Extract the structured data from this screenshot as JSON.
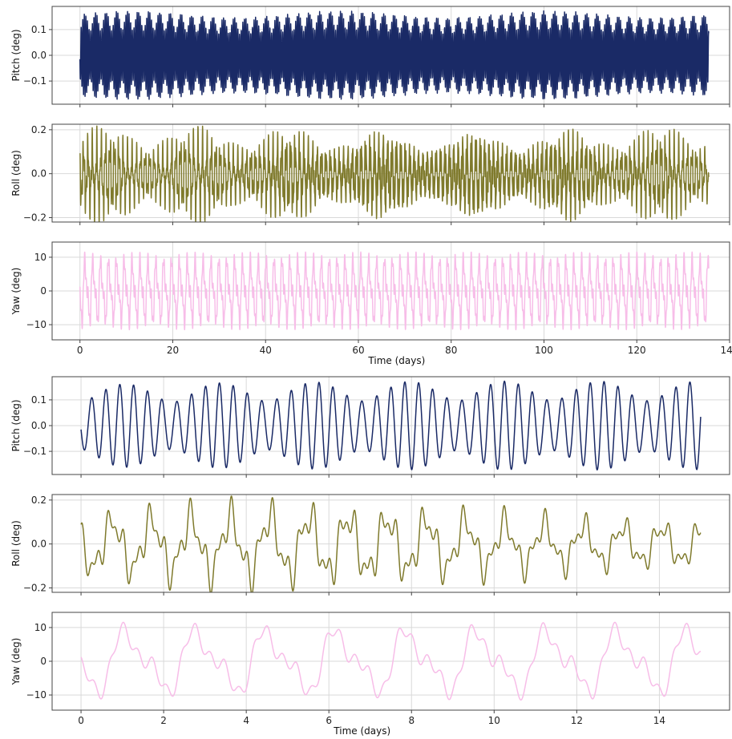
{
  "colors": {
    "pitch": "#1a2a66",
    "roll": "#7f7a2c",
    "yaw": "#f7bde8"
  },
  "chart_data": [
    {
      "type": "line",
      "panel": "long-pitch",
      "ylabel": "Pitch (deg)",
      "xlabel": "",
      "xlim": [
        -6,
        140
      ],
      "ylim": [
        -0.19,
        0.19
      ],
      "xticks": [
        0,
        20,
        40,
        60,
        80,
        100,
        120,
        140
      ],
      "show_xtick_labels": false,
      "yticks": [
        {
          "v": 0.1,
          "label": "0.1"
        },
        {
          "v": 0.0,
          "label": "0.0"
        },
        {
          "v": -0.1,
          "label": "−0.1"
        }
      ],
      "grid": true,
      "series": [
        {
          "color_key": "pitch",
          "signal": {
            "t_start": 0,
            "t_end": 135.5,
            "samples": 4200,
            "offset": 0,
            "components": [
              {
                "amp": 0.125,
                "period": 0.345,
                "phase": 3.4
              },
              {
                "amp": 0.035,
                "period": 0.3,
                "phase": 0.5
              }
            ],
            "envelope": {
              "depth": 0.08,
              "period": 45
            }
          }
        }
      ]
    },
    {
      "type": "line",
      "panel": "long-roll",
      "ylabel": "Roll (deg)",
      "xlabel": "",
      "xlim": [
        -6,
        140
      ],
      "ylim": [
        -0.22,
        0.225
      ],
      "xticks": [
        0,
        20,
        40,
        60,
        80,
        100,
        120,
        140
      ],
      "show_xtick_labels": false,
      "yticks": [
        {
          "v": 0.2,
          "label": "0.2"
        },
        {
          "v": 0.0,
          "label": "0.0"
        },
        {
          "v": -0.2,
          "label": "−0.2"
        }
      ],
      "grid": true,
      "series": [
        {
          "color_key": "roll",
          "signal": {
            "t_start": 0,
            "t_end": 135.5,
            "samples": 4200,
            "offset": -0.005,
            "components": [
              {
                "amp": 0.1,
                "period": 0.95,
                "phase": 2.8
              },
              {
                "amp": 0.05,
                "period": 0.33,
                "phase": 1.2
              },
              {
                "amp": 0.035,
                "period": 0.2,
                "phase": 0.4
              }
            ],
            "envelope": {
              "depth": 0.25,
              "period": 20
            }
          }
        }
      ]
    },
    {
      "type": "line",
      "panel": "long-yaw",
      "ylabel": "Yaw (deg)",
      "xlabel": "Time (days)",
      "xlim": [
        -6,
        140
      ],
      "ylim": [
        -14.5,
        14.5
      ],
      "xticks": [
        0,
        20,
        40,
        60,
        80,
        100,
        120,
        140
      ],
      "show_xtick_labels": true,
      "yticks": [
        {
          "v": 10,
          "label": "10"
        },
        {
          "v": 0,
          "label": "0"
        },
        {
          "v": -10,
          "label": "−10"
        }
      ],
      "grid": true,
      "series": [
        {
          "color_key": "yaw",
          "signal": {
            "t_start": 0,
            "t_end": 135.5,
            "samples": 4200,
            "offset": 0,
            "components": [
              {
                "amp": 7.5,
                "period": 1.7,
                "phase": 3.6
              },
              {
                "amp": 3.5,
                "period": 0.85,
                "phase": 0.9
              },
              {
                "amp": 2.0,
                "period": 0.35,
                "phase": 2.0
              }
            ],
            "envelope": {
              "depth": 0.0,
              "period": 30
            }
          }
        }
      ]
    },
    {
      "type": "line",
      "panel": "short-pitch",
      "ylabel": "Pitch (deg)",
      "xlabel": "",
      "xlim": [
        -0.7,
        15.7
      ],
      "ylim": [
        -0.19,
        0.19
      ],
      "xticks": [
        0,
        2,
        4,
        6,
        8,
        10,
        12,
        14
      ],
      "show_xtick_labels": false,
      "yticks": [
        {
          "v": 0.1,
          "label": "0.1"
        },
        {
          "v": 0.0,
          "label": "0.0"
        },
        {
          "v": -0.1,
          "label": "−0.1"
        }
      ],
      "grid": true,
      "series": [
        {
          "color_key": "pitch",
          "signal": {
            "t_start": 0,
            "t_end": 15,
            "samples": 1800,
            "offset": 0,
            "components": [
              {
                "amp": 0.125,
                "period": 0.345,
                "phase": 3.4
              },
              {
                "amp": 0.035,
                "period": 0.3,
                "phase": 0.5
              }
            ],
            "envelope": {
              "depth": 0.08,
              "period": 45
            }
          }
        }
      ]
    },
    {
      "type": "line",
      "panel": "short-roll",
      "ylabel": "Roll (deg)",
      "xlabel": "",
      "xlim": [
        -0.7,
        15.7
      ],
      "ylim": [
        -0.22,
        0.225
      ],
      "xticks": [
        0,
        2,
        4,
        6,
        8,
        10,
        12,
        14
      ],
      "show_xtick_labels": false,
      "yticks": [
        {
          "v": 0.2,
          "label": "0.2"
        },
        {
          "v": 0.0,
          "label": "0.0"
        },
        {
          "v": -0.2,
          "label": "−0.2"
        }
      ],
      "grid": true,
      "series": [
        {
          "color_key": "roll",
          "signal": {
            "t_start": 0,
            "t_end": 15,
            "samples": 1800,
            "offset": -0.005,
            "components": [
              {
                "amp": 0.1,
                "period": 0.95,
                "phase": 2.8
              },
              {
                "amp": 0.05,
                "period": 0.33,
                "phase": 1.2
              },
              {
                "amp": 0.035,
                "period": 0.2,
                "phase": 0.4
              }
            ],
            "envelope": {
              "depth": 0.25,
              "period": 20
            }
          }
        }
      ]
    },
    {
      "type": "line",
      "panel": "short-yaw",
      "ylabel": "Yaw (deg)",
      "xlabel": "Time (days)",
      "xlim": [
        -0.7,
        15.7
      ],
      "ylim": [
        -14.5,
        14.5
      ],
      "xticks": [
        0,
        2,
        4,
        6,
        8,
        10,
        12,
        14
      ],
      "show_xtick_labels": true,
      "yticks": [
        {
          "v": 10,
          "label": "10"
        },
        {
          "v": 0,
          "label": "0"
        },
        {
          "v": -10,
          "label": "−10"
        }
      ],
      "grid": true,
      "series": [
        {
          "color_key": "yaw",
          "signal": {
            "t_start": 0,
            "t_end": 15,
            "samples": 1800,
            "offset": 0,
            "components": [
              {
                "amp": 7.5,
                "period": 1.7,
                "phase": 3.6
              },
              {
                "amp": 3.5,
                "period": 0.85,
                "phase": 0.9
              },
              {
                "amp": 2.0,
                "period": 0.35,
                "phase": 2.0
              }
            ],
            "envelope": {
              "depth": 0.0,
              "period": 30
            }
          }
        }
      ]
    }
  ]
}
